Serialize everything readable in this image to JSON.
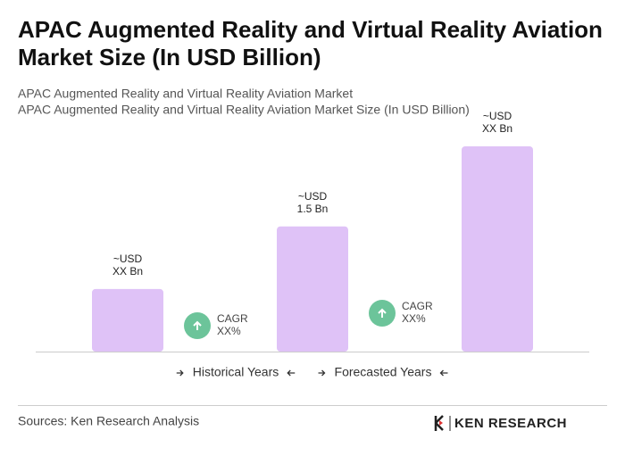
{
  "chart_data": {
    "type": "bar",
    "title": "APAC Augmented Reality and Virtual Reality Aviation Market Size (In USD Billion)",
    "subtitle": [
      "APAC Augmented Reality and Virtual Reality Aviation Market",
      "APAC Augmented Reality and Virtual Reality Aviation Market Size (In USD Billion)"
    ],
    "categories": [
      null,
      null,
      null
    ],
    "values": [
      0.75,
      1.5,
      2.46
    ],
    "value_labels": [
      [
        "~USD",
        "XX Bn"
      ],
      [
        "~USD",
        "1.5 Bn"
      ],
      [
        "~USD",
        "XX Bn"
      ]
    ],
    "color": "#dfc2f7",
    "annotations": [
      [
        "CAGR",
        "XX%"
      ],
      [
        "CAGR",
        "XX%"
      ]
    ],
    "annotation_color": "#6cc49a",
    "legend": [
      "Historical Years",
      "Forecasted Years"
    ],
    "source": "Sources: Ken Research Analysis",
    "logo": "KEN RESEARCH"
  }
}
